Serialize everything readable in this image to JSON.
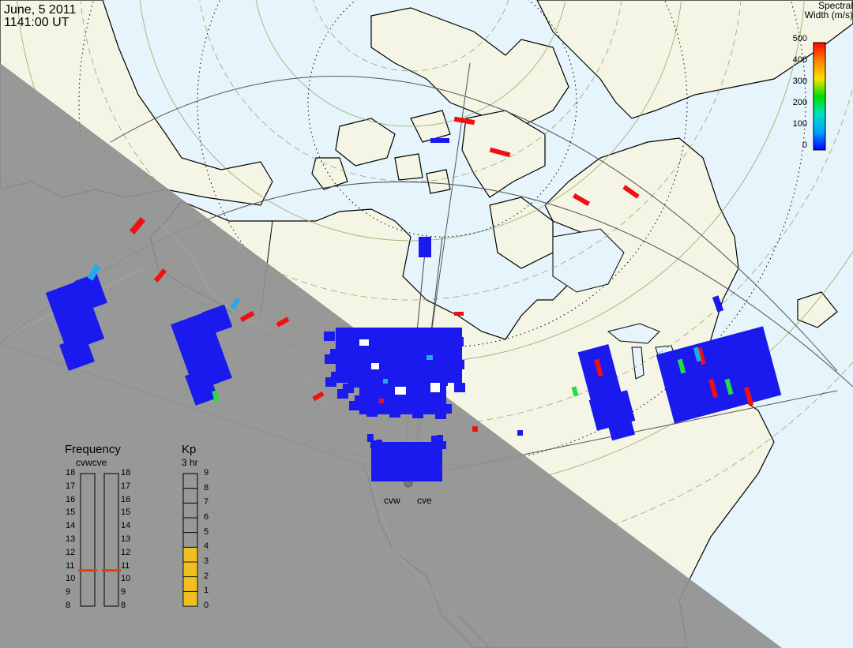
{
  "header": {
    "date": "June, 5 2011",
    "time": "1141:00 UT"
  },
  "colorbar": {
    "title_line1": "Spectral",
    "title_line2": "Width (m/s)",
    "ticks": [
      "500",
      "400",
      "300",
      "200",
      "100",
      "0"
    ],
    "colors": [
      "#ff0000",
      "#ff8000",
      "#ffe000",
      "#00e000",
      "#00e0c0",
      "#00a0ff",
      "#0000ff"
    ]
  },
  "frequency_panel": {
    "title": "Frequency",
    "radars_label": "cvwcve",
    "ticks": [
      "18",
      "17",
      "16",
      "15",
      "14",
      "13",
      "12",
      "11",
      "10",
      "9",
      "8"
    ],
    "cvw_mhz": 10.7,
    "cve_mhz": 10.7,
    "marker_color": "#e04010"
  },
  "kp_panel": {
    "title": "Kp",
    "subtitle": "3 hr",
    "ticks": [
      "9",
      "8",
      "7",
      "6",
      "5",
      "4",
      "3",
      "2",
      "1",
      "0"
    ],
    "value": 4,
    "fill_color": "#f0c020"
  },
  "radar_sites": {
    "west": "cvw",
    "east": "cve"
  },
  "map_colors": {
    "ocean": "#e6f4fc",
    "land": "#f5f5e6",
    "night": "#909090",
    "night_outline": "#a0a0a0",
    "scatter_main": "#1a1aee"
  }
}
